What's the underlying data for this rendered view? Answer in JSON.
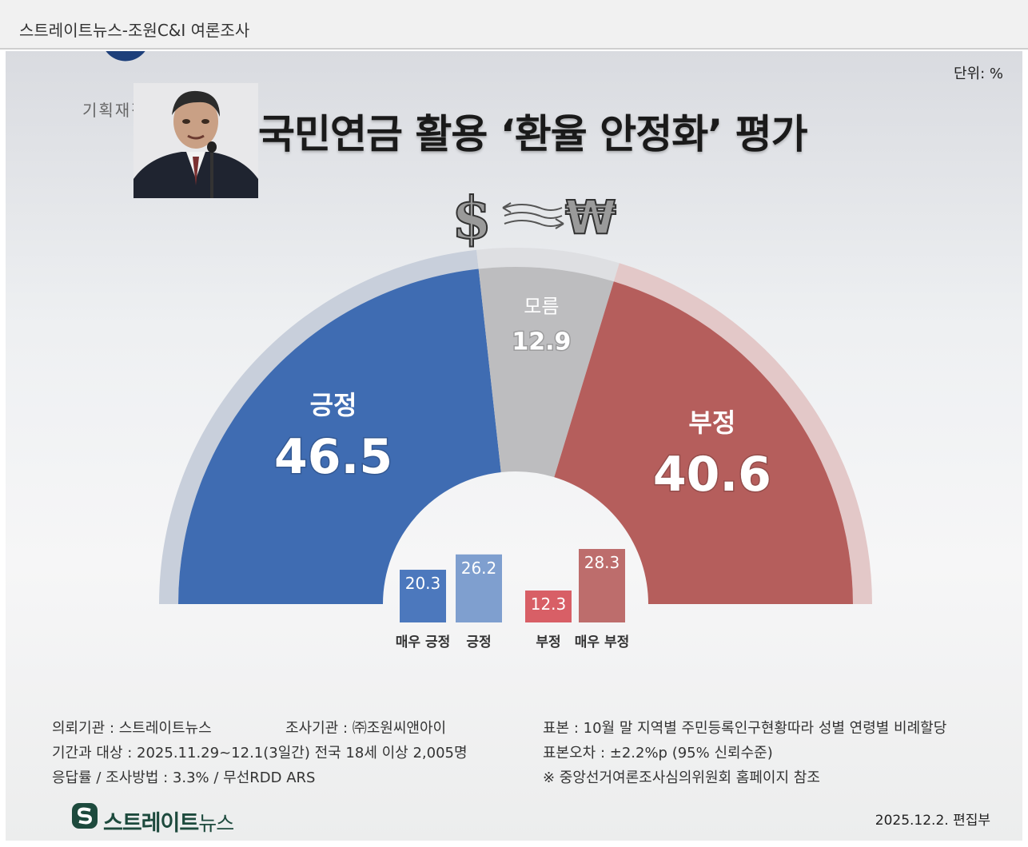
{
  "header": {
    "bar_title": "스트레이트뉴스-조원C&I 여론조사",
    "unit": "단위: %",
    "gov_name": "기획재정부",
    "main_title": "국민연금 활용 ‘환율 안정화’ 평가",
    "currency_left": "$",
    "currency_right": "₩"
  },
  "chart_data": [
    {
      "type": "pie",
      "categories": [
        "긍정",
        "모름",
        "부정"
      ],
      "values": [
        46.5,
        12.9,
        40.6
      ],
      "colors": [
        "#3f6cb2",
        "#bdbdbf",
        "#b55e5c"
      ]
    },
    {
      "type": "bar",
      "categories": [
        "매우 긍정",
        "긍정",
        "부정",
        "매우 부정"
      ],
      "values": [
        20.3,
        26.2,
        12.3,
        28.3
      ],
      "colors": [
        "#4c78bd",
        "#7f9fcf",
        "#d85f66",
        "#bd6d6c"
      ]
    }
  ],
  "footer": {
    "left": [
      "의뢰기관 : 스트레이트뉴스",
      "기간과 대상 : 2025.11.29~12.1(3일간)   전국 18세 이상  2,005명",
      "응답률 / 조사방법 : 3.3% / 무선RDD ARS"
    ],
    "mid": "조사기관 : ㈜조원씨앤아이",
    "right": [
      "표본 : 10월 말 지역별 주민등록인구현황따라 성별 연령별 비례할당",
      "표본오차 : ±2.2%p (95% 신뢰수준)",
      "※ 중앙선거여론조사심의위원회 홈페이지 참조"
    ],
    "brand_main": "스트레이트",
    "brand_sub": "뉴스",
    "date": "2025.12.2. 편집부",
    "watermark": "스트레이트뉴스"
  }
}
